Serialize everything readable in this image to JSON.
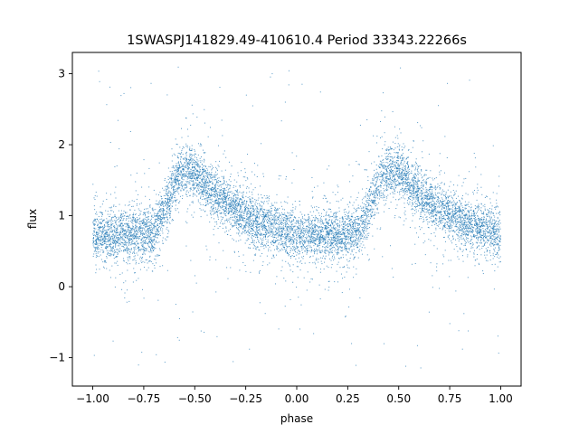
{
  "chart_data": {
    "type": "scatter",
    "title": "1SWASPJ141829.49-410610.4 Period 33343.22266s",
    "xlabel": "phase",
    "ylabel": "flux",
    "xlim": [
      -1.1,
      1.1
    ],
    "ylim": [
      -1.4,
      3.3
    ],
    "grid": false,
    "point_color": "#1f77b4",
    "x_ticks": [
      -1.0,
      -0.75,
      -0.5,
      -0.25,
      0.0,
      0.25,
      0.5,
      0.75,
      1.0
    ],
    "x_tick_labels": [
      "−1.00",
      "−0.75",
      "−0.50",
      "−0.25",
      "0.00",
      "0.25",
      "0.50",
      "0.75",
      "1.00"
    ],
    "y_ticks": [
      -1,
      0,
      1,
      2,
      3
    ],
    "y_tick_labels": [
      "−1",
      "0",
      "1",
      "2",
      "3"
    ],
    "x_domain": [
      -1.0,
      1.0
    ],
    "series": [
      {
        "phase_profile": [
          [
            0.0,
            0.72
          ],
          [
            0.1,
            0.72
          ],
          [
            0.2,
            0.72
          ],
          [
            0.3,
            0.76
          ],
          [
            0.35,
            1.05
          ],
          [
            0.4,
            1.45
          ],
          [
            0.45,
            1.65
          ],
          [
            0.5,
            1.62
          ],
          [
            0.55,
            1.45
          ],
          [
            0.6,
            1.3
          ],
          [
            0.7,
            1.1
          ],
          [
            0.8,
            0.92
          ],
          [
            0.9,
            0.82
          ],
          [
            1.0,
            0.72
          ]
        ],
        "flux_scatter": 0.17,
        "outlier_range": [
          -1.2,
          3.1
        ]
      }
    ]
  }
}
